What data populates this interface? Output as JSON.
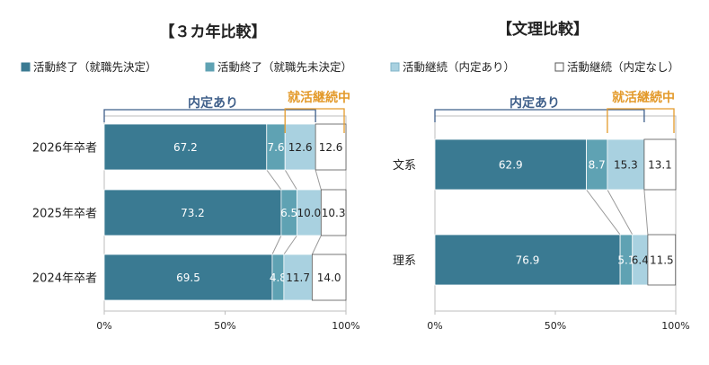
{
  "legend": {
    "items": [
      {
        "label": "活動終了（就職先決定）",
        "color": "#3a7a92",
        "border": "#3a7a92"
      },
      {
        "label": "活動終了（就職先未決定）",
        "color": "#5fa2b3",
        "border": "#5fa2b3"
      },
      {
        "label": "活動継続（内定あり）",
        "color": "#a9d1e0",
        "border": "#7fb4c8"
      },
      {
        "label": "活動継続（内定なし）",
        "color": "#ffffff",
        "border": "#555555"
      }
    ]
  },
  "chart_data": [
    {
      "type": "bar",
      "orientation": "horizontal",
      "stacked": true,
      "title": "【３カ年比較】",
      "categories": [
        "2026年卒者",
        "2025年卒者",
        "2024年卒者"
      ],
      "series": [
        {
          "name": "活動終了（就職先決定）",
          "values": [
            67.2,
            73.2,
            69.5
          ]
        },
        {
          "name": "活動終了（就職先未決定）",
          "values": [
            7.6,
            6.5,
            4.8
          ]
        },
        {
          "name": "活動継続（内定あり）",
          "values": [
            12.6,
            10.0,
            11.7
          ]
        },
        {
          "name": "活動継続（内定なし）",
          "values": [
            12.6,
            10.3,
            14.0
          ]
        }
      ],
      "data_labels": [
        [
          "67.2",
          "7.6",
          "12.6",
          "12.6"
        ],
        [
          "73.2",
          "6.5",
          "10.0",
          "10.3"
        ],
        [
          "69.5",
          "4.8",
          "11.7",
          "14.0"
        ]
      ],
      "xlim": [
        0,
        100
      ],
      "xticks": [
        "0%",
        "50%",
        "100%"
      ],
      "annotations": {
        "naitei": "内定あり",
        "katsudo": "就活継続中"
      }
    },
    {
      "type": "bar",
      "orientation": "horizontal",
      "stacked": true,
      "title": "【文理比較】",
      "categories": [
        "文系",
        "理系"
      ],
      "series": [
        {
          "name": "活動終了（就職先決定）",
          "values": [
            62.9,
            76.9
          ]
        },
        {
          "name": "活動終了（就職先未決定）",
          "values": [
            8.7,
            5.1
          ]
        },
        {
          "name": "活動継続（内定あり）",
          "values": [
            15.3,
            6.4
          ]
        },
        {
          "name": "活動継続（内定なし）",
          "values": [
            13.1,
            11.5
          ]
        }
      ],
      "data_labels": [
        [
          "62.9",
          "8.7",
          "15.3",
          "13.1"
        ],
        [
          "76.9",
          "5.1",
          "6.4",
          "11.5"
        ]
      ],
      "xlim": [
        0,
        100
      ],
      "xticks": [
        "0%",
        "50%",
        "100%"
      ],
      "annotations": {
        "naitei": "内定あり",
        "katsudo": "就活継続中"
      }
    }
  ]
}
